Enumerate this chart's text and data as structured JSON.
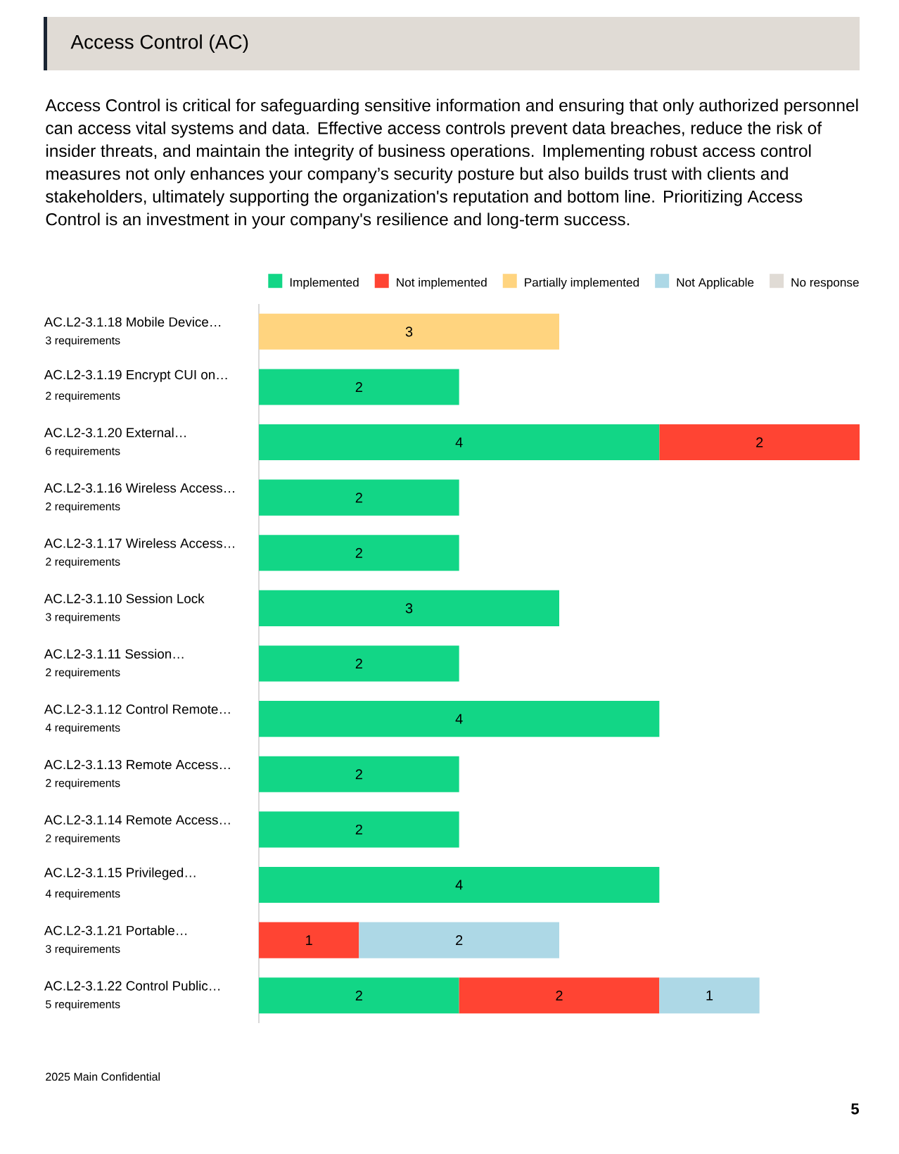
{
  "chart_data": {
    "type": "bar",
    "orientation": "horizontal",
    "stacked": true,
    "data_labels": true,
    "legend": "top",
    "tick_labels": "y",
    "title": "Access Control (AC)",
    "subtitle": "Access Control is critical for safeguarding sensitive information and ensuring that only authorized personnel can access vital systems and data. Effective access controls prevent data breaches, reduce the risk of insider threats, and maintain the integrity of business operations. Implementing robust access control measures not only enhances your company’s security posture but also builds trust with clients and stakeholders, ultimately supporting the organization's reputation and bottom line. Prioritizing Access Control is an investment in your company's resilience and long-term success.",
    "categories": [
      "AC.L2-3.1.18 Mobile Device…",
      "AC.L2-3.1.19 Encrypt CUI on…",
      "AC.L2-3.1.20 External…",
      "AC.L2-3.1.16 Wireless Access…",
      "AC.L2-3.1.17 Wireless Access…",
      "AC.L2-3.1.10 Session Lock",
      "AC.L2-3.1.11 Session…",
      "AC.L2-3.1.12 Control Remote…",
      "AC.L2-3.1.13 Remote Access…",
      "AC.L2-3.1.14 Remote Access…",
      "AC.L2-3.1.15 Privileged…",
      "AC.L2-3.1.21 Portable…",
      "AC.L2-3.1.22 Control Public…"
    ],
    "xlim": [
      0,
      6
    ],
    "series": [
      {
        "name": "Implemented",
        "color": "#12d686",
        "values": [
          null,
          2,
          4,
          2,
          2,
          3,
          2,
          4,
          2,
          2,
          4,
          null,
          2
        ]
      },
      {
        "name": "Not implemented",
        "color": "#ff4433",
        "values": [
          null,
          null,
          2,
          null,
          null,
          null,
          null,
          null,
          null,
          null,
          null,
          1,
          2
        ]
      },
      {
        "name": "Partially implemented",
        "color": "#ffd47f",
        "values": [
          3,
          null,
          null,
          null,
          null,
          null,
          null,
          null,
          null,
          null,
          null,
          null,
          null
        ]
      },
      {
        "name": "Not Applicable",
        "color": "#add8e6",
        "values": [
          null,
          null,
          null,
          null,
          null,
          null,
          null,
          null,
          null,
          null,
          null,
          2,
          1
        ]
      },
      {
        "name": "No response",
        "color": "#e0dbd5",
        "values": [
          null,
          null,
          null,
          null,
          null,
          null,
          null,
          null,
          null,
          null,
          null,
          null,
          null
        ]
      }
    ],
    "annotations": [
      "3 requirements",
      "2 requirements",
      "6 requirements",
      "2 requirements",
      "2 requirements",
      "3 requirements",
      "2 requirements",
      "4 requirements",
      "2 requirements",
      "2 requirements",
      "4 requirements",
      "3 requirements",
      "5 requirements",
      "2025 Main Confidential",
      "5"
    ]
  }
}
